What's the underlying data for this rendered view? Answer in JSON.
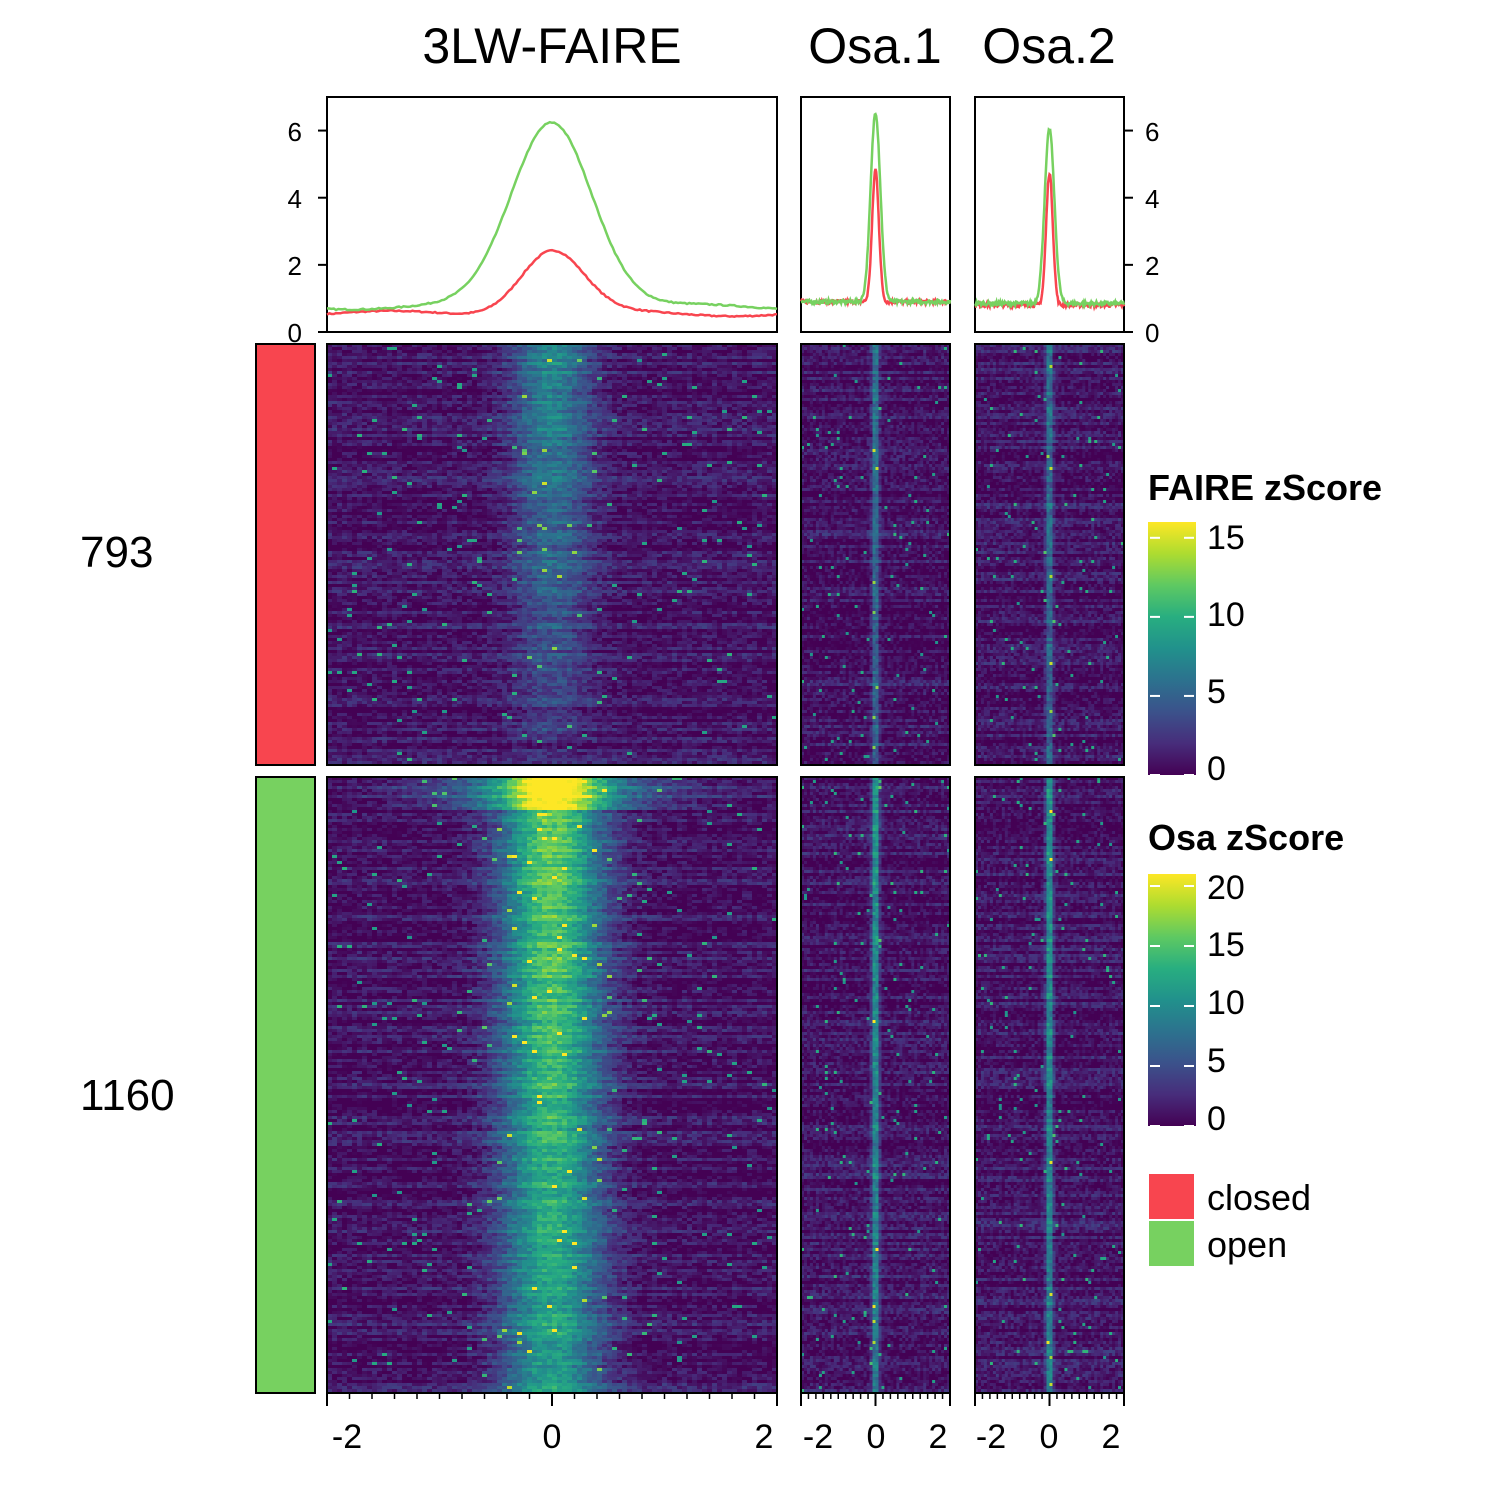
{
  "chart_data": {
    "type": "heatmap",
    "panels": [
      {
        "title": "3LW-FAIRE",
        "x_ticks": [
          "-2",
          "0",
          "2"
        ],
        "xlim": [
          -2,
          2
        ],
        "scale": "FAIRE zScore"
      },
      {
        "title": "Osa.1",
        "x_ticks": [
          "-2",
          "0",
          "2"
        ],
        "xlim": [
          -2,
          2
        ],
        "scale": "Osa zScore"
      },
      {
        "title": "Osa.2",
        "x_ticks": [
          "-2",
          "0",
          "2"
        ],
        "xlim": [
          -2,
          2
        ],
        "scale": "Osa zScore"
      }
    ],
    "profile": {
      "type": "line",
      "y_ticks": [
        "0",
        "2",
        "4",
        "6"
      ],
      "ylim": [
        0,
        7
      ],
      "series": [
        {
          "name": "closed",
          "color": "#F8454F",
          "panels": [
            {
              "peak": 2.45,
              "width": 0.28,
              "baseline": 0.55
            },
            {
              "peak": 4.85,
              "width": 0.09,
              "baseline": 0.9
            },
            {
              "peak": 4.75,
              "width": 0.09,
              "baseline": 0.8
            }
          ]
        },
        {
          "name": "open",
          "color": "#77D160",
          "panels": [
            {
              "peak": 6.3,
              "width": 0.36,
              "baseline": 0.75
            },
            {
              "peak": 6.55,
              "width": 0.13,
              "baseline": 0.9
            },
            {
              "peak": 6.05,
              "width": 0.13,
              "baseline": 0.85
            }
          ]
        }
      ]
    },
    "row_groups": [
      {
        "label": "793",
        "category": "closed",
        "color": "#F8454F",
        "count": 793
      },
      {
        "label": "1160",
        "category": "open",
        "color": "#77D160",
        "count": 1160
      }
    ],
    "color_scales": [
      {
        "title": "FAIRE zScore",
        "ticks": [
          "15",
          "10",
          "5",
          "0"
        ],
        "range": [
          0,
          16
        ],
        "palette": "viridis"
      },
      {
        "title": "Osa zScore",
        "ticks": [
          "20",
          "15",
          "10",
          "5",
          "0"
        ],
        "range": [
          0,
          21
        ],
        "palette": "viridis"
      }
    ],
    "legend": [
      {
        "label": "closed",
        "color": "#F8454F"
      },
      {
        "label": "open",
        "color": "#77D160"
      }
    ]
  }
}
